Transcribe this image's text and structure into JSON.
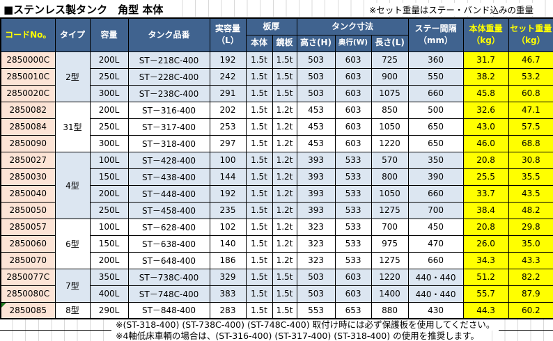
{
  "title": "■ステンレス製タンク　角型 本体",
  "top_note": "※セット重量はステー・バンド込みの重量",
  "colors": {
    "header_bg": "#40638F",
    "header_text": "#FFFFFF",
    "header_accent_text": "#FFFF00",
    "code_column_bg": "#FCE4D6",
    "group_row_bg": "#DCE6F1",
    "weight_column_bg": "#FFFF00",
    "border": "#000000",
    "gridline": "#D9D9D9",
    "error_flag": "#1F7A1F"
  },
  "table": {
    "headers": {
      "code": "コードNo。",
      "type": "タイプ",
      "capacity": "容量",
      "part_no": "タンク品番",
      "actual_capacity_l1": "実容量",
      "actual_capacity_l2": "（L）",
      "plate_thickness": "板厚",
      "body": "本体",
      "end_plate": "鏡板",
      "dimensions": "タンク寸法",
      "height": "高さ(H)",
      "depth": "奥行(W)",
      "length": "長さ(L)",
      "stay_l1": "ステー間隔",
      "stay_l2": "（mm）",
      "body_weight_l1": "本体重量",
      "body_weight_l2": "（kg）",
      "set_weight_l1": "セット重量",
      "set_weight_l2": "（kg）"
    },
    "groups": [
      {
        "type": "2型",
        "shade": "blue",
        "rows": [
          {
            "code": "2850000C",
            "capacity": "200L",
            "part": "ST－218C-400",
            "actual": "192",
            "body_t": "1.5t",
            "end_t": "1.5t",
            "h": "503",
            "w": "603",
            "l": "725",
            "stay": "360",
            "body_kg": "31.7",
            "set_kg": "46.7"
          },
          {
            "code": "2850010C",
            "capacity": "250L",
            "part": "ST－228C-400",
            "actual": "242",
            "body_t": "1.5t",
            "end_t": "1.5t",
            "h": "503",
            "w": "603",
            "l": "900",
            "stay": "550",
            "body_kg": "38.2",
            "set_kg": "53.2"
          },
          {
            "code": "2850020C",
            "capacity": "300L",
            "part": "ST－238C-400",
            "actual": "291",
            "body_t": "1.5t",
            "end_t": "1.5t",
            "h": "503",
            "w": "603",
            "l": "1075",
            "stay": "660",
            "body_kg": "45.8",
            "set_kg": "60.8"
          }
        ]
      },
      {
        "type": "31型",
        "shade": "white",
        "rows": [
          {
            "code": "2850082",
            "capacity": "200L",
            "part": "ST－316-400",
            "actual": "202",
            "body_t": "1.5t",
            "end_t": "1.2t",
            "h": "453",
            "w": "603",
            "l": "850",
            "stay": "500",
            "body_kg": "32.6",
            "set_kg": "47.1"
          },
          {
            "code": "2850084",
            "capacity": "250L",
            "part": "ST－317-400",
            "actual": "253",
            "body_t": "1.5t",
            "end_t": "1.2t",
            "h": "453",
            "w": "603",
            "l": "1050",
            "stay": "650",
            "body_kg": "43.0",
            "set_kg": "57.5"
          },
          {
            "code": "2850090",
            "capacity": "300L",
            "part": "ST－318-400",
            "actual": "297",
            "body_t": "1.5t",
            "end_t": "1.2t",
            "h": "453",
            "w": "603",
            "l": "1220",
            "stay": "650",
            "body_kg": "46.0",
            "set_kg": "68.8"
          }
        ]
      },
      {
        "type": "4型",
        "shade": "blue",
        "rows": [
          {
            "code": "2850027",
            "capacity": "100L",
            "part": "ST－428-400",
            "actual": "100",
            "body_t": "1.5t",
            "end_t": "1.2t",
            "h": "393",
            "w": "533",
            "l": "570",
            "stay": "350",
            "body_kg": "20.8",
            "set_kg": "30.8"
          },
          {
            "code": "2850030",
            "capacity": "150L",
            "part": "ST－438-400",
            "actual": "144",
            "body_t": "1.5t",
            "end_t": "1.2t",
            "h": "393",
            "w": "533",
            "l": "800",
            "stay": "390",
            "body_kg": "25.5",
            "set_kg": "35.5"
          },
          {
            "code": "2850040",
            "capacity": "200L",
            "part": "ST－448-400",
            "actual": "192",
            "body_t": "1.5t",
            "end_t": "1.2t",
            "h": "393",
            "w": "533",
            "l": "1050",
            "stay": "660",
            "body_kg": "33.7",
            "set_kg": "43.5"
          },
          {
            "code": "2850050",
            "capacity": "250L",
            "part": "ST－458-400",
            "actual": "235",
            "body_t": "1.5t",
            "end_t": "1.2t",
            "h": "393",
            "w": "533",
            "l": "1275",
            "stay": "700",
            "body_kg": "38.4",
            "set_kg": "48.2"
          }
        ]
      },
      {
        "type": "6型",
        "shade": "white",
        "rows": [
          {
            "code": "2850057",
            "capacity": "100L",
            "part": "ST－628-400",
            "actual": "102",
            "body_t": "1.5t",
            "end_t": "1.2t",
            "h": "323",
            "w": "533",
            "l": "700",
            "stay": "450",
            "body_kg": "20.8",
            "set_kg": "29.8"
          },
          {
            "code": "2850060",
            "capacity": "150L",
            "part": "ST－638-400",
            "actual": "140",
            "body_t": "1.5t",
            "end_t": "1.2t",
            "h": "323",
            "w": "533",
            "l": "975",
            "stay": "470",
            "body_kg": "26.0",
            "set_kg": "35.0"
          },
          {
            "code": "2850070",
            "capacity": "200L",
            "part": "ST－648-400",
            "actual": "186",
            "body_t": "1.5t",
            "end_t": "1.2t",
            "h": "323",
            "w": "533",
            "l": "1275",
            "stay": "660",
            "body_kg": "34.3",
            "set_kg": "43.3"
          }
        ]
      },
      {
        "type": "7型",
        "shade": "blue",
        "rows": [
          {
            "code": "2850077C",
            "capacity": "350L",
            "part": "ST－738C-400",
            "actual": "329",
            "body_t": "1.5t",
            "end_t": "1.5t",
            "h": "503",
            "w": "603",
            "l": "1220",
            "stay": "440・440",
            "body_kg": "51.2",
            "set_kg": "82.2"
          },
          {
            "code": "2850080C",
            "capacity": "400L",
            "part": "ST－748C-400",
            "actual": "383",
            "body_t": "1.5t",
            "end_t": "1.5t",
            "h": "503",
            "w": "603",
            "l": "1400",
            "stay": "440・440",
            "body_kg": "55.7",
            "set_kg": "87.9"
          }
        ]
      },
      {
        "type": "8型",
        "shade": "white",
        "rows": [
          {
            "code": "2850085",
            "capacity": "290L",
            "part": "ST－848-400",
            "actual": "283",
            "body_t": "1.5t",
            "end_t": "1.5t",
            "h": "553",
            "w": "653",
            "l": "880",
            "stay": "430",
            "body_kg": "44.3",
            "set_kg": "60.2",
            "flag": true
          }
        ]
      }
    ]
  },
  "footer_notes": [
    "※(ST-318-400) (ST-738C-400) (ST-748C-400) 取付け時には必ず保護板を使用してください。",
    "※4軸低床車輌の場合は、(ST-316-400) (ST-317-400) (ST-318-400) の使用を推奨します。"
  ]
}
